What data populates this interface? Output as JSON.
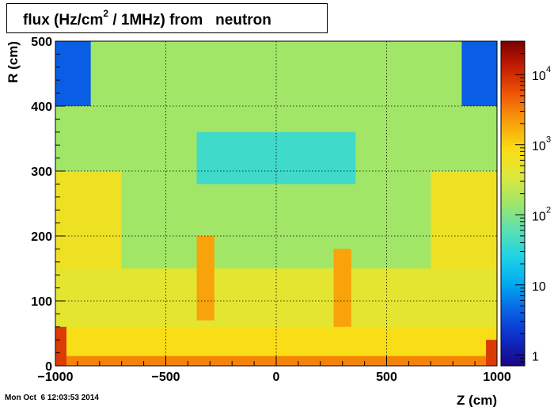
{
  "title": {
    "before_sup": "flux (Hz/cm",
    "sup": "2",
    "after_sup": " / 1MHz) from   neutron"
  },
  "timestamp": "Mon Oct  6 12:03:53 2014",
  "chart_data": {
    "type": "heatmap",
    "xlabel": "Z (cm)",
    "ylabel": "R (cm)",
    "xlim": [
      -1000,
      1000
    ],
    "ylim": [
      0,
      500
    ],
    "x_ticks": [
      -1000,
      -500,
      0,
      500,
      1000
    ],
    "x_tick_labels": [
      "−1000",
      "−500",
      "0",
      "500",
      "1000"
    ],
    "y_ticks": [
      0,
      100,
      200,
      300,
      400,
      500
    ],
    "y_tick_labels": [
      "0",
      "100",
      "200",
      "300",
      "400",
      "500"
    ],
    "grid": true,
    "z_scale": "log",
    "zlim": [
      0.7,
      30000
    ],
    "colorbar_ticks": [
      {
        "value": 1,
        "mantissa": "1",
        "exponent": ""
      },
      {
        "value": 10,
        "mantissa": "10",
        "exponent": ""
      },
      {
        "value": 100,
        "mantissa": "10",
        "exponent": "2"
      },
      {
        "value": 1000,
        "mantissa": "10",
        "exponent": "3"
      },
      {
        "value": 10000,
        "mantissa": "10",
        "exponent": "4"
      }
    ],
    "colormap": [
      "#1c0582",
      "#0c2cc6",
      "#0a5fe6",
      "#00a8f0",
      "#1ed2e6",
      "#5ae0b4",
      "#a0e66a",
      "#dce83c",
      "#fadc14",
      "#f8a00a",
      "#f05a06",
      "#c81e02",
      "#7a0000"
    ],
    "regions": [
      {
        "z": [
          -1000,
          1000
        ],
        "r": [
          0,
          500
        ],
        "flux": 150
      },
      {
        "z": [
          -1000,
          -700
        ],
        "r": [
          0,
          300
        ],
        "flux": 600
      },
      {
        "z": [
          700,
          1000
        ],
        "r": [
          0,
          300
        ],
        "flux": 600
      },
      {
        "z": [
          -1000,
          1000
        ],
        "r": [
          0,
          150
        ],
        "flux": 450
      },
      {
        "z": [
          -1000,
          1000
        ],
        "r": [
          0,
          60
        ],
        "flux": 800
      },
      {
        "z": [
          -1000,
          1000
        ],
        "r": [
          0,
          15
        ],
        "flux": 3000
      },
      {
        "z": [
          -360,
          -280
        ],
        "r": [
          70,
          200
        ],
        "flux": 2000
      },
      {
        "z": [
          260,
          340
        ],
        "r": [
          60,
          180
        ],
        "flux": 2000
      },
      {
        "z": [
          -360,
          360
        ],
        "r": [
          280,
          360
        ],
        "flux": 40
      },
      {
        "z": [
          -1000,
          -840
        ],
        "r": [
          400,
          500
        ],
        "flux": 4
      },
      {
        "z": [
          840,
          1000
        ],
        "r": [
          400,
          500
        ],
        "flux": 4
      },
      {
        "z": [
          -1000,
          -950
        ],
        "r": [
          0,
          60
        ],
        "flux": 8000
      },
      {
        "z": [
          950,
          1000
        ],
        "r": [
          0,
          40
        ],
        "flux": 8000
      }
    ]
  }
}
